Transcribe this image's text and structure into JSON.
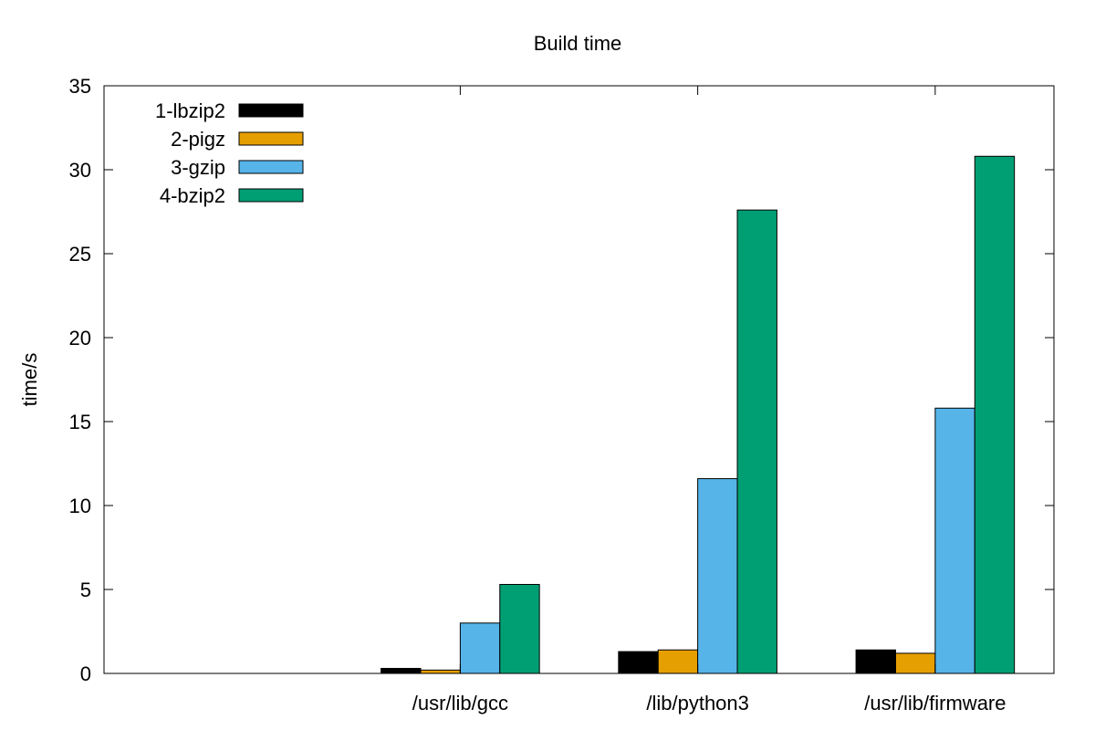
{
  "chart_data": {
    "type": "bar",
    "title": "Build time",
    "xlabel": "",
    "ylabel": "time/s",
    "ylim": [
      0,
      35
    ],
    "yticks": [
      0,
      5,
      10,
      15,
      20,
      25,
      30,
      35
    ],
    "xlim": [
      -1.5,
      2.5
    ],
    "categories": [
      "/usr/lib/gcc",
      "/lib/python3",
      "/usr/lib/firmware"
    ],
    "series": [
      {
        "name": "1-lbzip2",
        "color": "#000000",
        "values": [
          0.3,
          1.3,
          1.4
        ]
      },
      {
        "name": "2-pigz",
        "color": "#E69F00",
        "values": [
          0.2,
          1.4,
          1.2
        ]
      },
      {
        "name": "3-gzip",
        "color": "#56B4E9",
        "values": [
          3.0,
          11.6,
          15.8
        ]
      },
      {
        "name": "4-bzip2",
        "color": "#009E73",
        "values": [
          5.3,
          27.6,
          30.8
        ]
      }
    ],
    "legend_position": "top-left",
    "grid": false
  }
}
